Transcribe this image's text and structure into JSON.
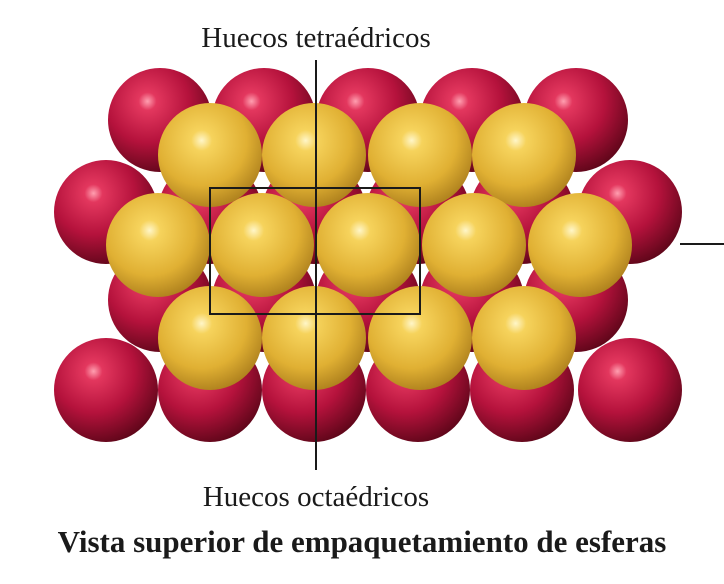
{
  "labels": {
    "top": "Huecos tetraédricos",
    "bottom": "Huecos octaédricos",
    "caption": "Vista superior de empaquetamiento de esferas"
  },
  "colors": {
    "red_sphere": "#b5123c",
    "gold_sphere": "#e3b53a",
    "lines": "#1a1a1a"
  },
  "layers": {
    "red_rows": 4,
    "gold_rows": 3
  }
}
